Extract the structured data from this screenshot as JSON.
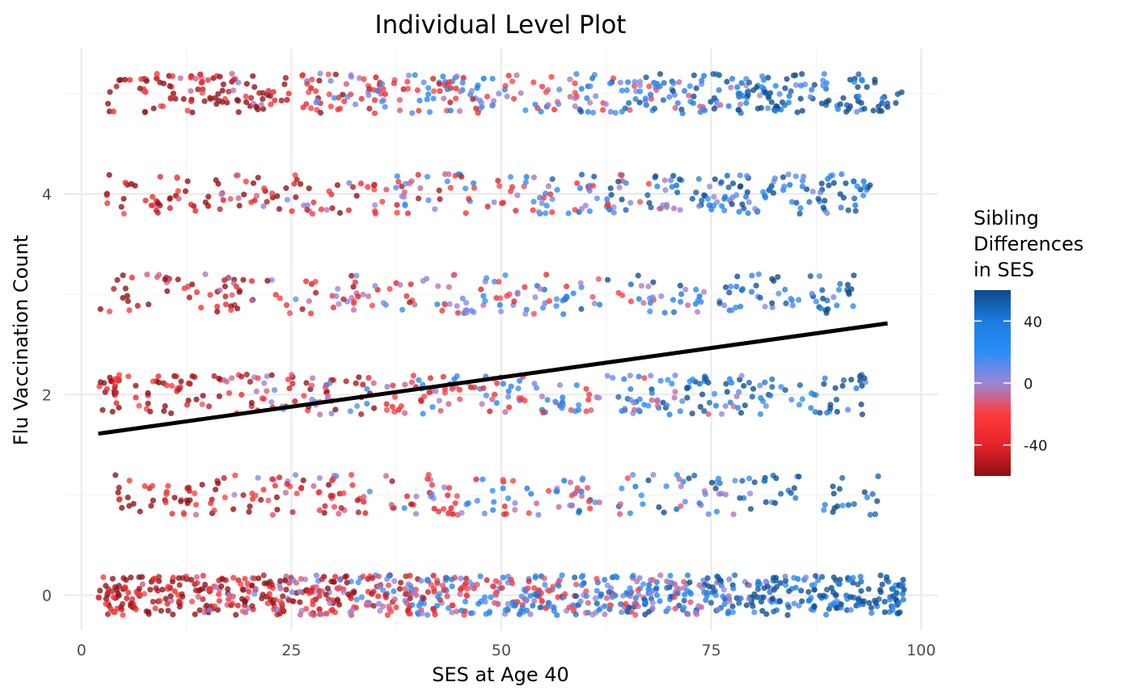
{
  "chart_data": {
    "type": "scatter",
    "title": "Individual Level Plot",
    "xlabel": "SES at Age 40",
    "ylabel": "Flu Vaccination Count",
    "xlim": [
      -2,
      102
    ],
    "ylim": [
      -0.35,
      5.45
    ],
    "x_ticks": [
      0,
      25,
      50,
      75,
      100
    ],
    "x_tick_labels": [
      "0",
      "25",
      "50",
      "75",
      "100"
    ],
    "y_ticks": [
      0,
      2,
      4
    ],
    "y_tick_labels": [
      "0",
      "2",
      "4"
    ],
    "grid": true,
    "jitter": {
      "x_range": [
        2,
        98
      ],
      "y_spread": 0.2,
      "categories": [
        0,
        1,
        2,
        3,
        4,
        5
      ]
    },
    "color_scale": {
      "label": "Sibling Differences in SES",
      "title_lines": [
        "Sibling",
        "Differences",
        "in SES"
      ],
      "range": [
        -60,
        60
      ],
      "breaks": [
        40,
        0,
        -40
      ],
      "break_labels": [
        "40",
        "0",
        "-40"
      ],
      "stops": [
        {
          "value": -60,
          "color": "#8b0f14"
        },
        {
          "value": -40,
          "color": "#e4242a"
        },
        {
          "value": -20,
          "color": "#ff3b3b"
        },
        {
          "value": 0,
          "color": "#9b86d9"
        },
        {
          "value": 20,
          "color": "#2a8df7"
        },
        {
          "value": 40,
          "color": "#1c7be0"
        },
        {
          "value": 60,
          "color": "#0e4a8a"
        }
      ],
      "legend_position": "right"
    },
    "groups": [
      {
        "y": 0,
        "count": 900,
        "x_min": 2,
        "x_max": 98
      },
      {
        "y": 1,
        "count": 270,
        "x_min": 4,
        "x_max": 95
      },
      {
        "y": 2,
        "count": 360,
        "x_min": 2,
        "x_max": 94
      },
      {
        "y": 3,
        "count": 260,
        "x_min": 2,
        "x_max": 92
      },
      {
        "y": 4,
        "count": 330,
        "x_min": 3,
        "x_max": 94
      },
      {
        "y": 5,
        "count": 470,
        "x_min": 3,
        "x_max": 98
      }
    ],
    "trend_line": {
      "x": [
        2,
        96
      ],
      "y": [
        1.61,
        2.71
      ],
      "color": "#000000"
    }
  }
}
